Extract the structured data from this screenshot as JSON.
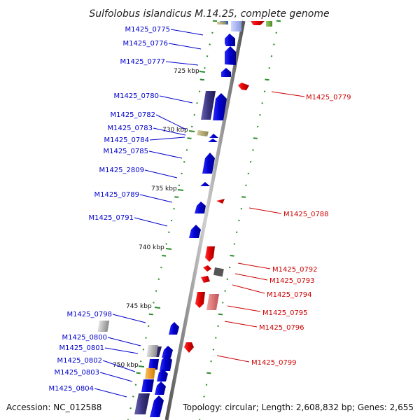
{
  "title": "Sulfolobus islandicus M.14.25, complete genome",
  "accession": "Accession: NC_012588",
  "topology": "Topology: circular; Length: 2,608,832 bp; Genes: 2,655",
  "colors": {
    "backbone": "#8c8c8c",
    "tick": "#2e8b2e",
    "left_label": "#0000cc",
    "right_label": "#cc0000",
    "forward_gene": "#0000ee",
    "reverse_gene": "#ee0000",
    "dark_gene": "#3a3480",
    "olive_gene": "#b5ab73",
    "orange_gene": "#f0a020",
    "grey_gene": "#b0b0b0",
    "pink_gene": "#e88080",
    "dark_grey_gene": "#555555"
  },
  "kbp_marks": [
    "725 kbp",
    "730 kbp",
    "735 kbp",
    "740 kbp",
    "745 kbp",
    "750 kbp"
  ],
  "left_labels": [
    "M1425_0775",
    "M1425_0776",
    "M1425_0777",
    "M1425_0780",
    "M1425_0782",
    "M1425_0783",
    "M1425_0784",
    "M1425_0785",
    "M1425_2809",
    "M1425_0789",
    "M1425_0791",
    "M1425_0798",
    "M1425_0800",
    "M1425_0801",
    "M1425_0802",
    "M1425_0803",
    "M1425_0804"
  ],
  "right_labels": [
    "M1425_0779",
    "M1425_0788",
    "M1425_0792",
    "M1425_0793",
    "M1425_0794",
    "M1425_0795",
    "M1425_0796",
    "M1425_0799"
  ]
}
